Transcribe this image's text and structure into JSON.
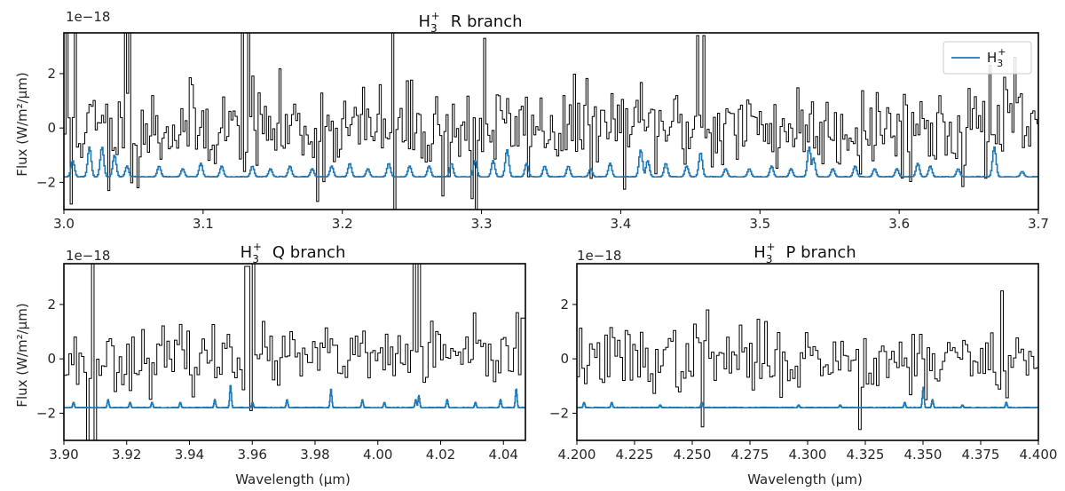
{
  "colors": {
    "observed": "#000000",
    "model": "#1f77b4",
    "frame": "#000000"
  },
  "chart_data": [
    {
      "id": "r_branch",
      "type": "line",
      "title_prefix": "H",
      "title_sub": "3",
      "title_sup": "+",
      "title_suffix": "R branch",
      "xlabel": "",
      "ylabel": "Flux (W/m²/μm)",
      "sci_label": "1e−18",
      "xlim": [
        3.0,
        3.7
      ],
      "ylim": [
        -3.0,
        3.5
      ],
      "xticks": [
        3.0,
        3.1,
        3.2,
        3.3,
        3.4,
        3.5,
        3.6,
        3.7
      ],
      "xtick_labels": [
        "3.0",
        "3.1",
        "3.2",
        "3.3",
        "3.4",
        "3.5",
        "3.6",
        "3.7"
      ],
      "yticks": [
        -2,
        0,
        2
      ],
      "ytick_labels": [
        "−2",
        "0",
        "2"
      ],
      "legend": {
        "placement": "top-right",
        "label_prefix": "H",
        "label_sub": "3",
        "label_sup": "+"
      },
      "series": [
        {
          "role": "observed",
          "step": 0.0015,
          "noise_sd": 0.8,
          "baseline": 0.0,
          "spikes": [
            [
              3.002,
              3.6
            ],
            [
              3.005,
              -2.8
            ],
            [
              3.008,
              3.6
            ],
            [
              3.032,
              -2.3
            ],
            [
              3.043,
              3.6
            ],
            [
              3.047,
              3.6
            ],
            [
              3.052,
              -2.2
            ],
            [
              3.128,
              3.6
            ],
            [
              3.132,
              3.6
            ],
            [
              3.182,
              -2.7
            ],
            [
              3.235,
              3.6
            ],
            [
              3.237,
              -3.1
            ],
            [
              3.272,
              -2.5
            ],
            [
              3.292,
              -2.6
            ],
            [
              3.296,
              -3.0
            ],
            [
              3.302,
              3.3
            ],
            [
              3.455,
              3.4
            ],
            [
              3.459,
              3.4
            ],
            [
              3.664,
              2.3
            ],
            [
              3.682,
              2.6
            ]
          ]
        },
        {
          "role": "model",
          "name": "H3+",
          "baseline": -1.8,
          "lines": [
            [
              3.006,
              -1.2
            ],
            [
              3.018,
              -0.7
            ],
            [
              3.027,
              -0.7
            ],
            [
              3.036,
              -1.0
            ],
            [
              3.045,
              -1.4
            ],
            [
              3.068,
              -1.4
            ],
            [
              3.085,
              -1.5
            ],
            [
              3.098,
              -1.3
            ],
            [
              3.113,
              -1.4
            ],
            [
              3.135,
              -1.4
            ],
            [
              3.148,
              -1.5
            ],
            [
              3.162,
              -1.4
            ],
            [
              3.178,
              -1.5
            ],
            [
              3.192,
              -1.4
            ],
            [
              3.205,
              -1.3
            ],
            [
              3.218,
              -1.5
            ],
            [
              3.233,
              -1.3
            ],
            [
              3.248,
              -1.4
            ],
            [
              3.262,
              -1.4
            ],
            [
              3.278,
              -1.3
            ],
            [
              3.295,
              -1.2
            ],
            [
              3.308,
              -1.2
            ],
            [
              3.318,
              -0.8
            ],
            [
              3.332,
              -1.3
            ],
            [
              3.345,
              -1.4
            ],
            [
              3.362,
              -1.4
            ],
            [
              3.378,
              -1.5
            ],
            [
              3.392,
              -1.3
            ],
            [
              3.414,
              -0.8
            ],
            [
              3.419,
              -1.2
            ],
            [
              3.432,
              -1.3
            ],
            [
              3.447,
              -1.4
            ],
            [
              3.457,
              -0.9
            ],
            [
              3.475,
              -1.5
            ],
            [
              3.492,
              -1.5
            ],
            [
              3.508,
              -1.4
            ],
            [
              3.522,
              -1.5
            ],
            [
              3.535,
              -0.7
            ],
            [
              3.538,
              -1.1
            ],
            [
              3.552,
              -1.5
            ],
            [
              3.568,
              -1.4
            ],
            [
              3.582,
              -1.5
            ],
            [
              3.598,
              -1.5
            ],
            [
              3.613,
              -1.3
            ],
            [
              3.622,
              -1.4
            ],
            [
              3.642,
              -1.5
            ],
            [
              3.668,
              -0.7
            ],
            [
              3.688,
              -1.6
            ]
          ]
        }
      ]
    },
    {
      "id": "q_branch",
      "type": "line",
      "title_prefix": "H",
      "title_sub": "3",
      "title_sup": "+",
      "title_suffix": "Q branch",
      "xlabel": "Wavelength (μm)",
      "ylabel": "Flux (W/m²/μm)",
      "sci_label": "1e−18",
      "xlim": [
        3.9,
        4.047
      ],
      "ylim": [
        -3.0,
        3.5
      ],
      "xticks": [
        3.9,
        3.92,
        3.94,
        3.96,
        3.98,
        4.0,
        4.02,
        4.04
      ],
      "xtick_labels": [
        "3.90",
        "3.92",
        "3.94",
        "3.96",
        "3.98",
        "4.00",
        "4.02",
        "4.04"
      ],
      "yticks": [
        -2,
        0,
        2
      ],
      "ytick_labels": [
        "−2",
        "0",
        "2"
      ],
      "series": [
        {
          "role": "observed",
          "step": 0.0008,
          "noise_sd": 0.55,
          "baseline": 0.0,
          "spikes": [
            [
              3.9075,
              -3.0
            ],
            [
              3.9085,
              3.5
            ],
            [
              3.9095,
              -3.0
            ],
            [
              3.952,
              0.9
            ],
            [
              3.958,
              3.4
            ],
            [
              3.959,
              -1.9
            ],
            [
              3.96,
              3.5
            ],
            [
              3.986,
              0.5
            ],
            [
              4.011,
              3.5
            ],
            [
              4.013,
              3.5
            ],
            [
              4.016,
              0.6
            ],
            [
              4.019,
              0.9
            ],
            [
              4.044,
              1.7
            ],
            [
              4.046,
              1.5
            ]
          ]
        },
        {
          "role": "model",
          "name": "H3+",
          "baseline": -1.8,
          "lines": [
            [
              3.903,
              -1.6
            ],
            [
              3.914,
              -1.5
            ],
            [
              3.921,
              -1.6
            ],
            [
              3.928,
              -1.6
            ],
            [
              3.937,
              -1.6
            ],
            [
              3.948,
              -1.5
            ],
            [
              3.953,
              -0.95
            ],
            [
              3.96,
              -1.6
            ],
            [
              3.971,
              -1.5
            ],
            [
              3.985,
              -1.1
            ],
            [
              3.995,
              -1.5
            ],
            [
              4.002,
              -1.6
            ],
            [
              4.012,
              -1.5
            ],
            [
              4.013,
              -1.35
            ],
            [
              4.022,
              -1.5
            ],
            [
              4.031,
              -1.6
            ],
            [
              4.039,
              -1.5
            ],
            [
              4.044,
              -1.1
            ]
          ]
        }
      ]
    },
    {
      "id": "p_branch",
      "type": "line",
      "title_prefix": "H",
      "title_sub": "3",
      "title_sup": "+",
      "title_suffix": "P branch",
      "xlabel": "Wavelength (μm)",
      "ylabel": "",
      "sci_label": "1e−18",
      "xlim": [
        4.2,
        4.4
      ],
      "ylim": [
        -3.0,
        3.5
      ],
      "xticks": [
        4.2,
        4.225,
        4.25,
        4.275,
        4.3,
        4.325,
        4.35,
        4.375,
        4.4
      ],
      "xtick_labels": [
        "4.200",
        "4.225",
        "4.250",
        "4.275",
        "4.300",
        "4.325",
        "4.350",
        "4.375",
        "4.400"
      ],
      "yticks": [
        -2,
        0,
        2
      ],
      "ytick_labels": [
        "−2",
        "0",
        "2"
      ],
      "series": [
        {
          "role": "observed",
          "step": 0.0011,
          "noise_sd": 0.6,
          "baseline": 0.0,
          "spikes": [
            [
              4.254,
              -2.5
            ],
            [
              4.256,
              1.8
            ],
            [
              4.322,
              -2.6
            ],
            [
              4.384,
              2.5
            ],
            [
              4.351,
              -1.5
            ]
          ]
        },
        {
          "role": "model",
          "name": "H3+",
          "baseline": -1.8,
          "lines": [
            [
              4.203,
              -1.6
            ],
            [
              4.215,
              -1.6
            ],
            [
              4.236,
              -1.7
            ],
            [
              4.254,
              -1.6
            ],
            [
              4.296,
              -1.7
            ],
            [
              4.314,
              -1.7
            ],
            [
              4.342,
              -1.6
            ],
            [
              4.35,
              -1.05
            ],
            [
              4.354,
              -1.5
            ],
            [
              4.367,
              -1.7
            ],
            [
              4.386,
              -1.6
            ]
          ]
        }
      ]
    }
  ]
}
